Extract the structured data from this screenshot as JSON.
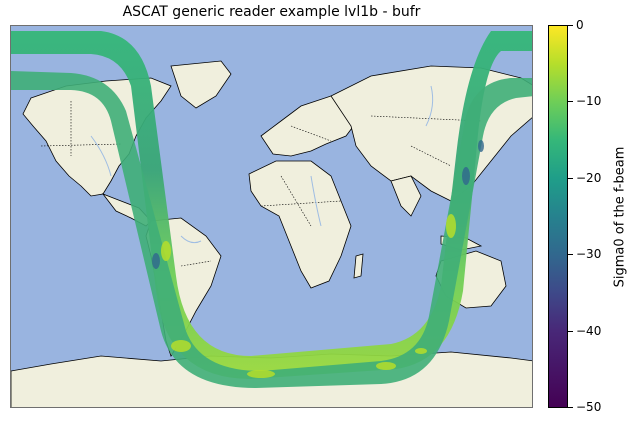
{
  "title": "ASCAT generic reader example lvl1b - bufr",
  "colorbar": {
    "label": "Sigma0 of the f-beam",
    "ticks": [
      "0",
      "−10",
      "−20",
      "−30",
      "−40",
      "−50"
    ],
    "vmin": -50,
    "vmax": 0,
    "colormap": "viridis"
  },
  "colors": {
    "ocean": "#99b4e0",
    "land": "#f0efdd",
    "coastline": "#000000",
    "borders": "#000000",
    "rivers": "#9fbde3"
  }
}
